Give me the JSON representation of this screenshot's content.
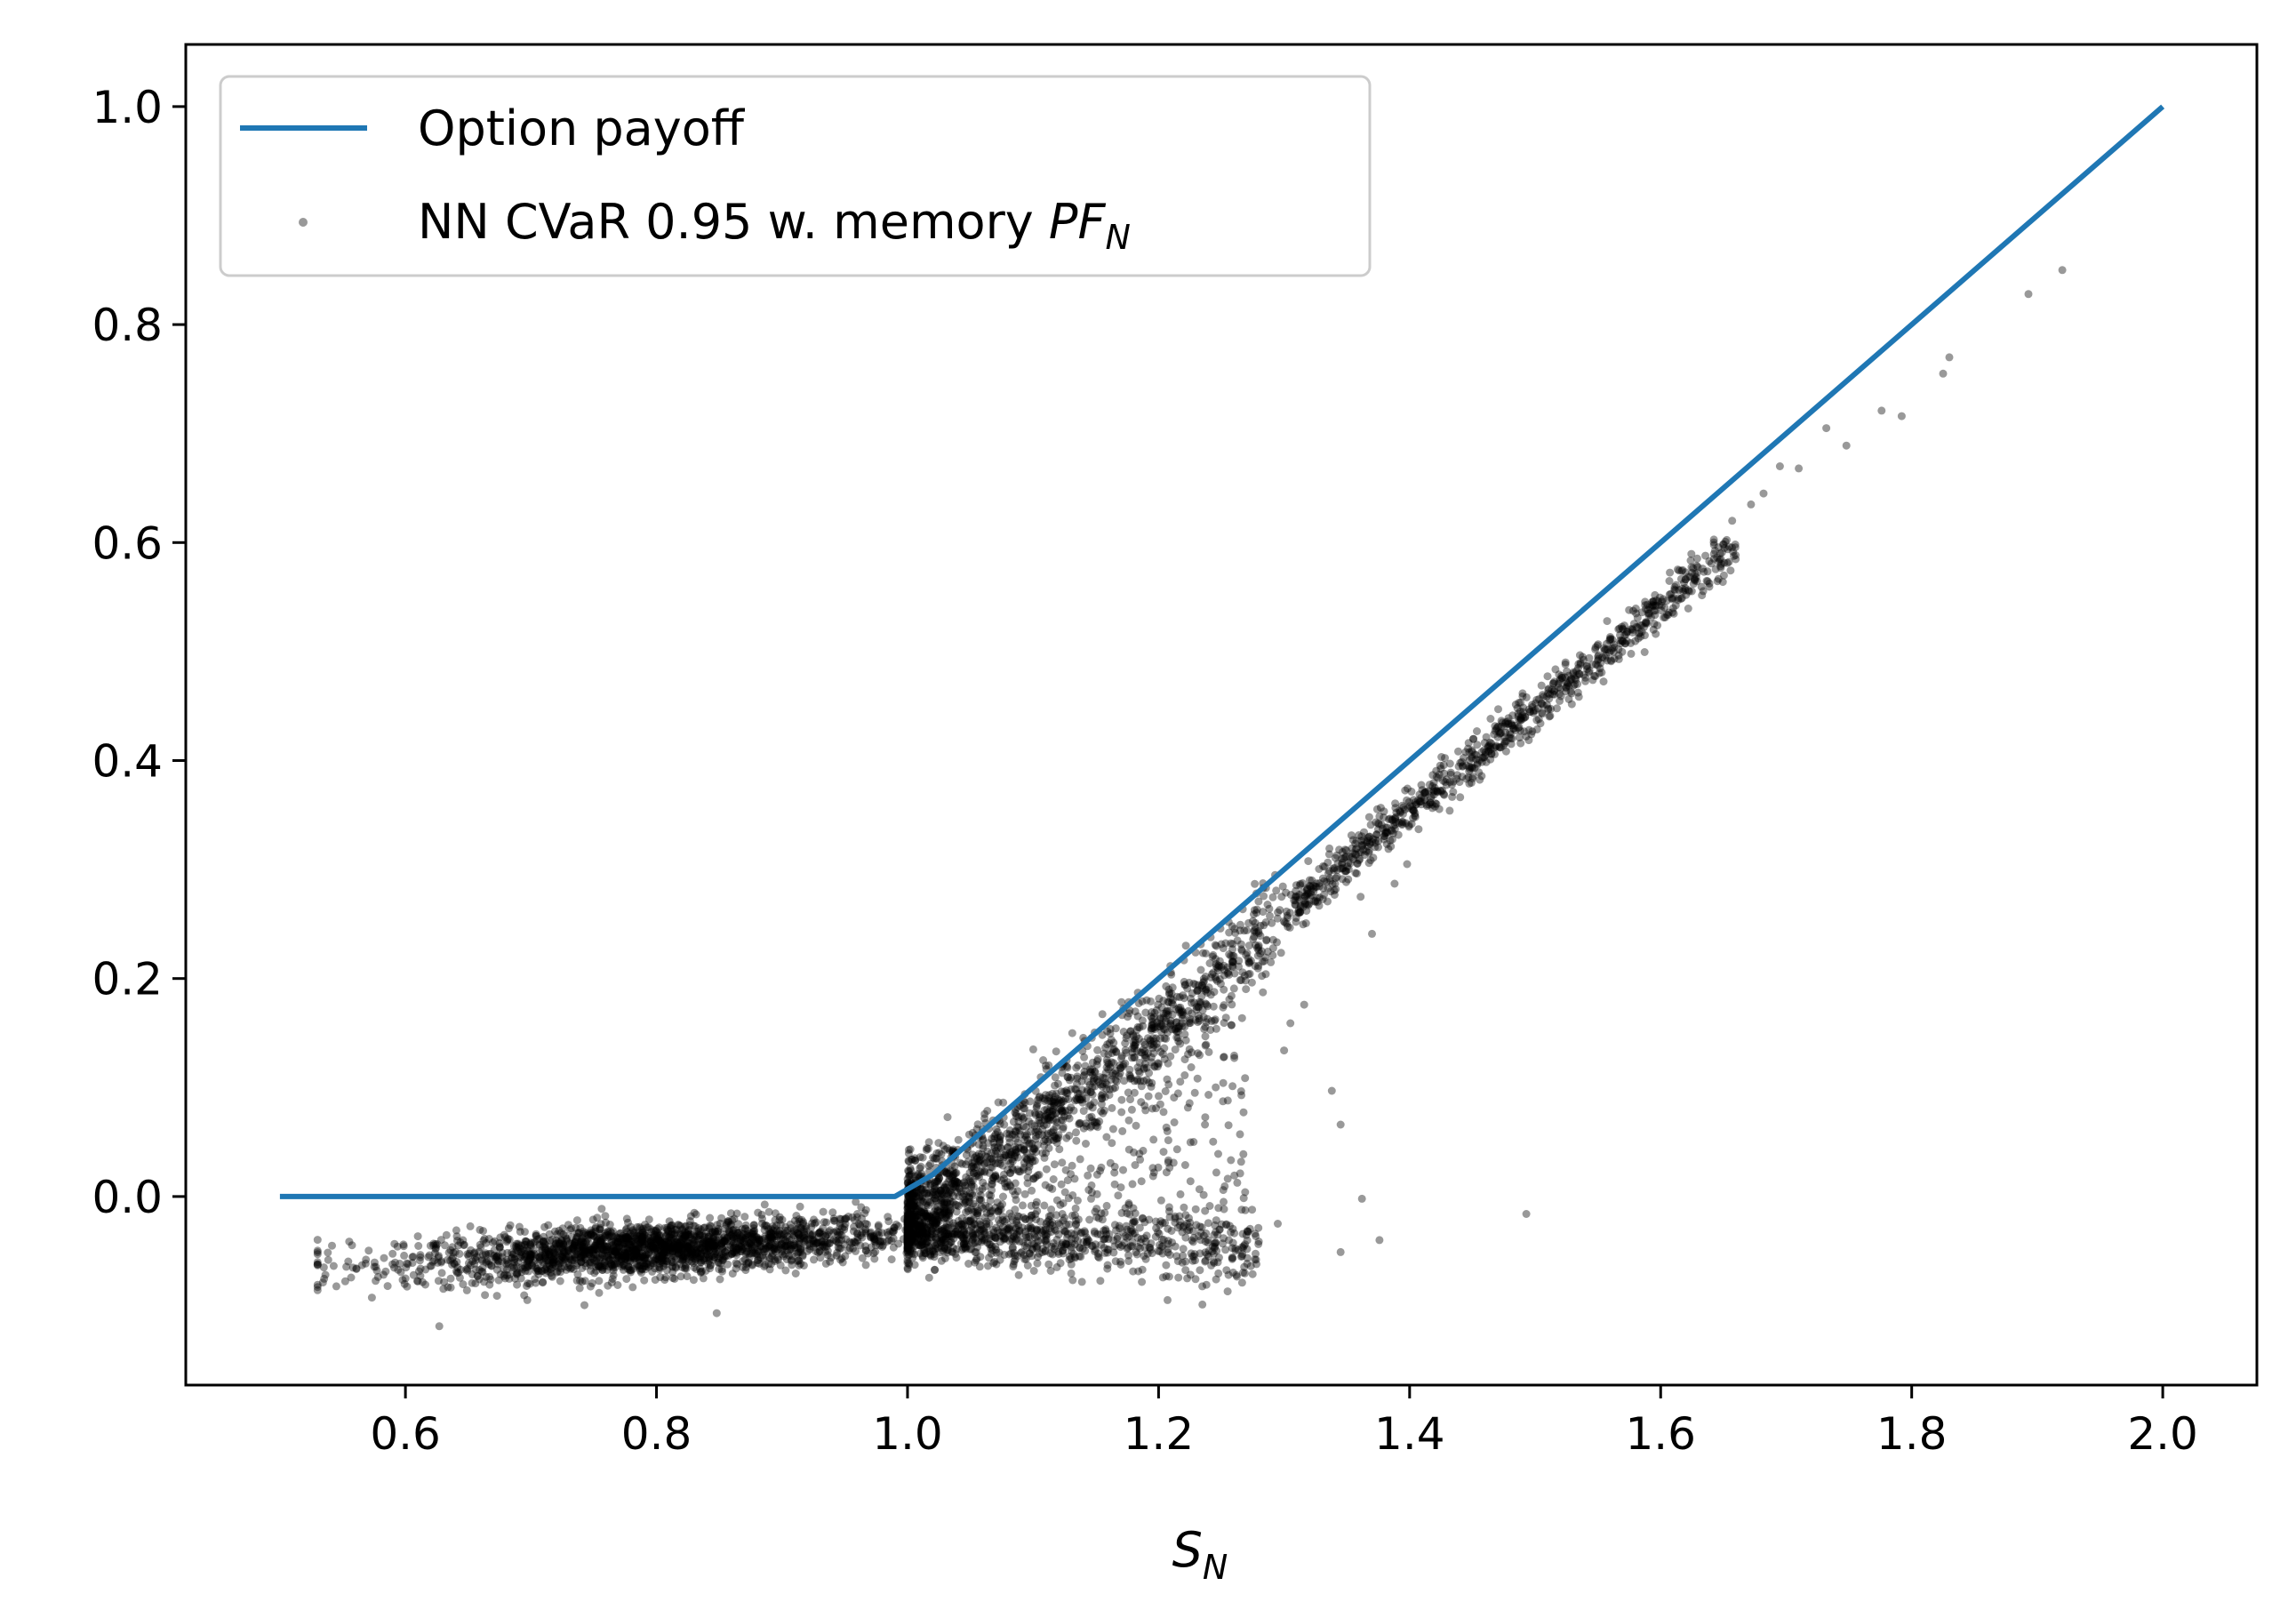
{
  "chart_data": {
    "type": "scatter",
    "title": "",
    "xlabel": "S",
    "xlabel_subscript": "N",
    "ylabel": "",
    "xlim": [
      0.425,
      2.075
    ],
    "ylim": [
      -0.173,
      1.057
    ],
    "xticks": [
      0.6,
      0.8,
      1.0,
      1.2,
      1.4,
      1.6,
      1.8,
      2.0
    ],
    "xtick_labels": [
      "0.6",
      "0.8",
      "1.0",
      "1.2",
      "1.4",
      "1.6",
      "1.8",
      "2.0"
    ],
    "yticks": [
      0.0,
      0.2,
      0.4,
      0.6,
      0.8,
      1.0
    ],
    "ytick_labels": [
      "0.0",
      "0.2",
      "0.4",
      "0.6",
      "0.8",
      "1.0"
    ],
    "grid": false,
    "legend_position": "top-left",
    "series": [
      {
        "name": "Option payoff",
        "kind": "line",
        "color": "#1f77b4",
        "x": [
          0.5,
          0.99,
          1.02,
          2.0
        ],
        "y": [
          0.0,
          0.0,
          0.02,
          1.0
        ]
      },
      {
        "name": "NN CVaR 0.95 w. memory ",
        "name_math": "PF",
        "name_math_subscript": "N",
        "kind": "scatter",
        "color": "#000000",
        "opacity": 0.4,
        "approx_point_count": 5000,
        "regimes": [
          {
            "description": "out of the money cloud",
            "x_range": [
              0.53,
              1.0
            ],
            "y_center_start": -0.065,
            "y_center_end": -0.035,
            "spread": 0.012
          },
          {
            "description": "lower branch beyond strike",
            "x_range": [
              1.0,
              1.28
            ],
            "y_center_start": -0.035,
            "y_center_end": -0.045,
            "spread": 0.012
          },
          {
            "description": "upper branch tracking payoff",
            "x_range": [
              1.0,
              1.66
            ],
            "y_center_start": -0.01,
            "y_center_end": 0.595,
            "spread": 0.01
          }
        ],
        "outliers": [
          {
            "x": 0.627,
            "y": -0.119
          },
          {
            "x": 0.535,
            "y": -0.065
          },
          {
            "x": 0.848,
            "y": -0.107
          },
          {
            "x": 1.493,
            "y": -0.016
          },
          {
            "x": 1.376,
            "y": -0.04
          },
          {
            "x": 1.362,
            "y": -0.002
          },
          {
            "x": 1.345,
            "y": -0.051
          },
          {
            "x": 1.295,
            "y": -0.025
          },
          {
            "x": 1.278,
            "y": -0.062
          },
          {
            "x": 1.269,
            "y": 0.004
          },
          {
            "x": 1.246,
            "y": 0.022
          },
          {
            "x": 1.225,
            "y": -0.024
          },
          {
            "x": 1.262,
            "y": -0.072
          },
          {
            "x": 1.212,
            "y": 0.031
          },
          {
            "x": 1.182,
            "y": 0.065
          },
          {
            "x": 1.204,
            "y": 0.041
          },
          {
            "x": 1.237,
            "y": 0.066
          },
          {
            "x": 1.266,
            "y": 0.093
          },
          {
            "x": 1.3,
            "y": 0.134
          },
          {
            "x": 1.338,
            "y": 0.097
          },
          {
            "x": 1.345,
            "y": 0.066
          },
          {
            "x": 1.316,
            "y": 0.176
          },
          {
            "x": 1.305,
            "y": 0.159
          },
          {
            "x": 1.37,
            "y": 0.241
          },
          {
            "x": 1.361,
            "y": 0.275
          },
          {
            "x": 1.388,
            "y": 0.287
          },
          {
            "x": 1.398,
            "y": 0.305
          },
          {
            "x": 1.893,
            "y": 0.828
          },
          {
            "x": 1.92,
            "y": 0.85
          },
          {
            "x": 1.83,
            "y": 0.77
          },
          {
            "x": 1.825,
            "y": 0.755
          },
          {
            "x": 1.792,
            "y": 0.716
          },
          {
            "x": 1.776,
            "y": 0.721
          },
          {
            "x": 1.748,
            "y": 0.689
          },
          {
            "x": 1.732,
            "y": 0.705
          },
          {
            "x": 1.695,
            "y": 0.67
          },
          {
            "x": 1.71,
            "y": 0.668
          },
          {
            "x": 1.682,
            "y": 0.645
          },
          {
            "x": 1.672,
            "y": 0.635
          },
          {
            "x": 1.657,
            "y": 0.62
          }
        ]
      }
    ]
  }
}
